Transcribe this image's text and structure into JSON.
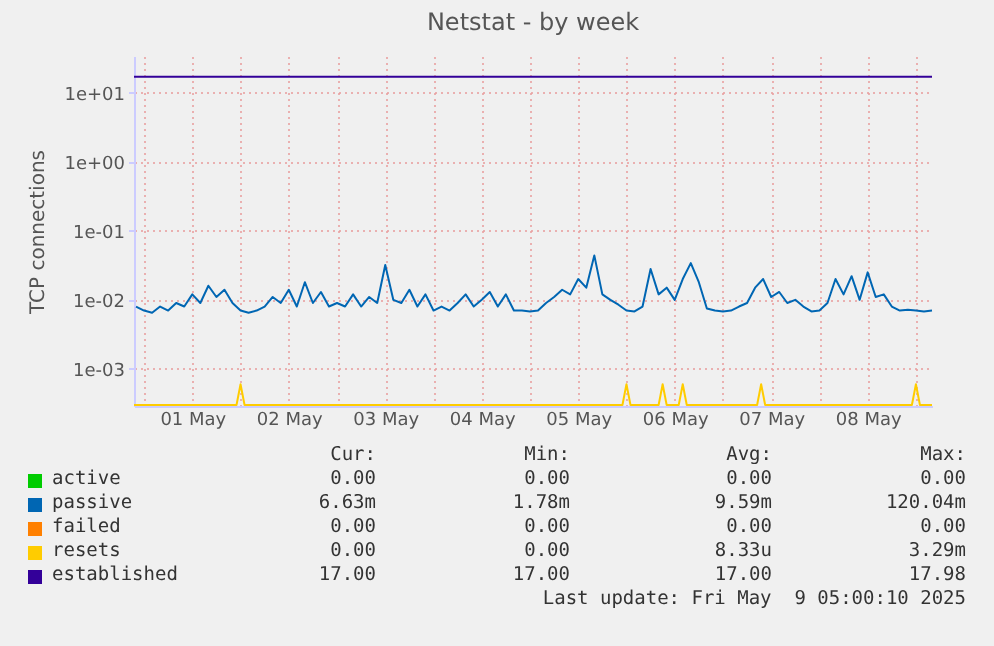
{
  "chart_data": {
    "type": "line",
    "title": "Netstat - by week",
    "ylabel": "TCP connections",
    "log": "y",
    "grid": true,
    "legend": "bottom",
    "xlim": [
      "2025-04-30T21:30",
      "2025-05-09T04:00"
    ],
    "xticks": [
      {
        "value": "2025-05-01T00:00",
        "label": null
      },
      {
        "value": "2025-05-01T12:00",
        "label": "01 May"
      },
      {
        "value": "2025-05-02T00:00",
        "label": null
      },
      {
        "value": "2025-05-02T12:00",
        "label": "02 May"
      },
      {
        "value": "2025-05-03T00:00",
        "label": null
      },
      {
        "value": "2025-05-03T12:00",
        "label": "03 May"
      },
      {
        "value": "2025-05-04T00:00",
        "label": null
      },
      {
        "value": "2025-05-04T12:00",
        "label": "04 May"
      },
      {
        "value": "2025-05-05T00:00",
        "label": null
      },
      {
        "value": "2025-05-05T12:00",
        "label": "05 May"
      },
      {
        "value": "2025-05-06T00:00",
        "label": null
      },
      {
        "value": "2025-05-06T12:00",
        "label": "06 May"
      },
      {
        "value": "2025-05-07T00:00",
        "label": null
      },
      {
        "value": "2025-05-07T12:00",
        "label": "07 May"
      },
      {
        "value": "2025-05-08T00:00",
        "label": null
      },
      {
        "value": "2025-05-08T12:00",
        "label": "08 May"
      },
      {
        "value": "2025-05-09T00:00",
        "label": null
      }
    ],
    "ylim": [
      0.00029,
      34
    ],
    "yticks": [
      {
        "value": 0.001,
        "label": "1e-03"
      },
      {
        "value": 0.01,
        "label": "1e-02"
      },
      {
        "value": 0.1,
        "label": "1e-01"
      },
      {
        "value": 1,
        "label": "1e+00"
      },
      {
        "value": 10,
        "label": "1e+01"
      }
    ],
    "series": [
      {
        "name": "active",
        "color": "#00cc00"
      },
      {
        "name": "passive",
        "color": "#0066b3",
        "x": [
          "2025-04-30T22:00",
          "2025-05-01T00:00",
          "2025-05-01T02:00",
          "2025-05-01T04:00",
          "2025-05-01T06:00",
          "2025-05-01T08:00",
          "2025-05-01T10:00",
          "2025-05-01T12:00",
          "2025-05-01T14:00",
          "2025-05-01T16:00",
          "2025-05-01T18:00",
          "2025-05-01T20:00",
          "2025-05-01T22:00",
          "2025-05-02T00:00",
          "2025-05-02T02:00",
          "2025-05-02T04:00",
          "2025-05-02T06:00",
          "2025-05-02T08:00",
          "2025-05-02T10:00",
          "2025-05-02T12:00",
          "2025-05-02T14:00",
          "2025-05-02T16:00",
          "2025-05-02T18:00",
          "2025-05-02T20:00",
          "2025-05-02T22:00",
          "2025-05-03T00:00",
          "2025-05-03T02:00",
          "2025-05-03T04:00",
          "2025-05-03T06:00",
          "2025-05-03T08:00",
          "2025-05-03T10:00",
          "2025-05-03T12:00",
          "2025-05-03T14:00",
          "2025-05-03T16:00",
          "2025-05-03T18:00",
          "2025-05-03T20:00",
          "2025-05-03T22:00",
          "2025-05-04T00:00",
          "2025-05-04T02:00",
          "2025-05-04T04:00",
          "2025-05-04T06:00",
          "2025-05-04T08:00",
          "2025-05-04T10:00",
          "2025-05-04T12:00",
          "2025-05-04T14:00",
          "2025-05-04T16:00",
          "2025-05-04T18:00",
          "2025-05-04T20:00",
          "2025-05-04T22:00",
          "2025-05-05T00:00",
          "2025-05-05T02:00",
          "2025-05-05T04:00",
          "2025-05-05T06:00",
          "2025-05-05T08:00",
          "2025-05-05T10:00",
          "2025-05-05T12:00",
          "2025-05-05T14:00",
          "2025-05-05T16:00",
          "2025-05-05T18:00",
          "2025-05-05T20:00",
          "2025-05-05T22:00",
          "2025-05-06T00:00",
          "2025-05-06T02:00",
          "2025-05-06T04:00",
          "2025-05-06T06:00",
          "2025-05-06T08:00",
          "2025-05-06T10:00",
          "2025-05-06T12:00",
          "2025-05-06T14:00",
          "2025-05-06T16:00",
          "2025-05-06T18:00",
          "2025-05-06T20:00",
          "2025-05-06T22:00",
          "2025-05-07T00:00",
          "2025-05-07T02:00",
          "2025-05-07T04:00",
          "2025-05-07T06:00",
          "2025-05-07T08:00",
          "2025-05-07T10:00",
          "2025-05-07T12:00",
          "2025-05-07T14:00",
          "2025-05-07T16:00",
          "2025-05-07T18:00",
          "2025-05-07T20:00",
          "2025-05-07T22:00",
          "2025-05-08T00:00",
          "2025-05-08T02:00",
          "2025-05-08T04:00",
          "2025-05-08T06:00",
          "2025-05-08T08:00",
          "2025-05-08T10:00",
          "2025-05-08T12:00",
          "2025-05-08T14:00",
          "2025-05-08T16:00",
          "2025-05-08T18:00",
          "2025-05-08T20:00",
          "2025-05-08T22:00",
          "2025-05-09T00:00",
          "2025-05-09T02:00",
          "2025-05-09T04:00"
        ],
        "values": [
          0.008,
          0.007,
          0.0065,
          0.008,
          0.007,
          0.009,
          0.008,
          0.012,
          0.009,
          0.016,
          0.011,
          0.014,
          0.009,
          0.007,
          0.0065,
          0.007,
          0.008,
          0.011,
          0.009,
          0.014,
          0.008,
          0.018,
          0.009,
          0.013,
          0.008,
          0.009,
          0.008,
          0.012,
          0.008,
          0.011,
          0.009,
          0.032,
          0.01,
          0.009,
          0.014,
          0.008,
          0.012,
          0.007,
          0.008,
          0.007,
          0.009,
          0.012,
          0.008,
          0.01,
          0.013,
          0.008,
          0.012,
          0.007,
          0.007,
          0.0068,
          0.007,
          0.009,
          0.011,
          0.014,
          0.012,
          0.02,
          0.015,
          0.044,
          0.012,
          0.01,
          0.0085,
          0.007,
          0.0068,
          0.008,
          0.028,
          0.012,
          0.015,
          0.01,
          0.02,
          0.034,
          0.018,
          0.0075,
          0.007,
          0.0068,
          0.007,
          0.008,
          0.009,
          0.015,
          0.02,
          0.011,
          0.013,
          0.009,
          0.01,
          0.008,
          0.0068,
          0.007,
          0.009,
          0.02,
          0.012,
          0.022,
          0.01,
          0.025,
          0.011,
          0.012,
          0.008,
          0.007,
          0.0072,
          0.007,
          0.0068,
          0.007
        ]
      },
      {
        "name": "failed",
        "color": "#ff8000"
      },
      {
        "name": "resets",
        "color": "#ffcc00",
        "x": [
          "2025-04-30T21:30",
          "2025-05-01T23:00",
          "2025-05-02T00:00",
          "2025-05-02T01:00",
          "2025-05-05T23:00",
          "2025-05-06T00:00",
          "2025-05-06T01:00",
          "2025-05-06T08:00",
          "2025-05-06T09:00",
          "2025-05-06T10:00",
          "2025-05-06T13:00",
          "2025-05-06T14:00",
          "2025-05-06T15:00",
          "2025-05-07T08:30",
          "2025-05-07T09:30",
          "2025-05-07T10:30",
          "2025-05-08T23:00",
          "2025-05-09T00:00",
          "2025-05-09T01:00",
          "2025-05-09T04:00"
        ],
        "values": [
          0.0003,
          0.0003,
          0.0006,
          0.0003,
          0.0003,
          0.0006,
          0.0003,
          0.0003,
          0.0006,
          0.0003,
          0.0003,
          0.0006,
          0.0003,
          0.0003,
          0.0006,
          0.0003,
          0.0003,
          0.0006,
          0.0003,
          0.0003
        ]
      },
      {
        "name": "established",
        "color": "#330099",
        "x": [
          "2025-04-30T21:30",
          "2025-05-09T04:00"
        ],
        "values": [
          17,
          17
        ]
      }
    ],
    "annotations": [
      "Cur:",
      "Min:",
      "Avg:",
      "Max:",
      "0.00",
      "0.00",
      "0.00",
      "0.00",
      "6.63m",
      "1.78m",
      "9.59m",
      "120.04m",
      "0.00",
      "0.00",
      "0.00",
      "0.00",
      "0.00",
      "0.00",
      "8.33u",
      "3.29m",
      "17.00",
      "17.00",
      "17.00",
      "17.98",
      "Last update: Fri May  9 05:00:10 2025"
    ]
  }
}
